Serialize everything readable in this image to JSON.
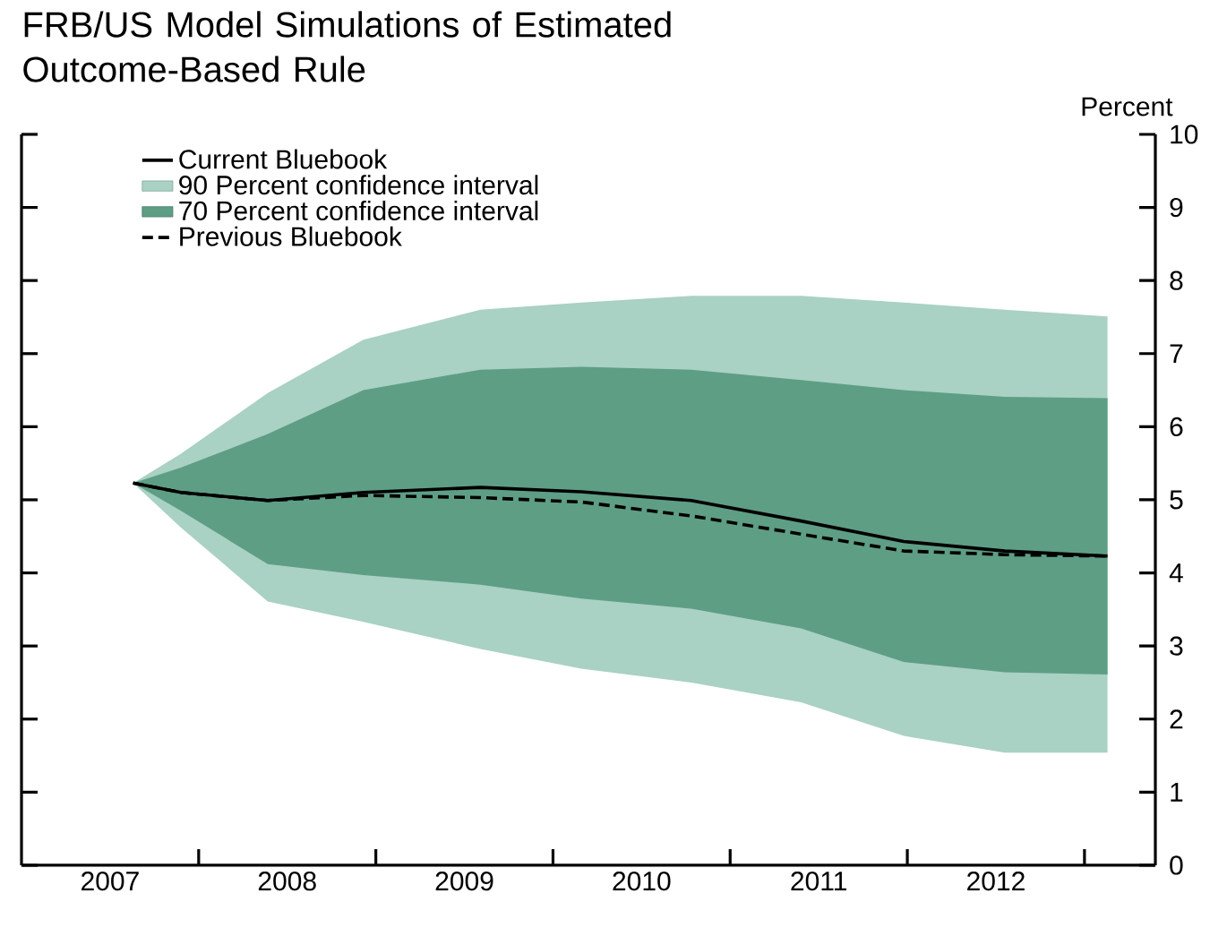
{
  "chart_data": {
    "type": "line",
    "title": "FRB/US Model Simulations of Estimated Outcome-Based Rule",
    "ylabel": "Percent",
    "legend": "top left",
    "x": [
      2007.63,
      2007.9,
      2008.39,
      2008.93,
      2009.59,
      2010.16,
      2010.78,
      2011.4,
      2011.98,
      2012.55,
      2013.13
    ],
    "xlim": [
      2007,
      2013.4
    ],
    "xticks": [
      {
        "value": 2007.5,
        "label": "2007"
      },
      {
        "value": 2008,
        "label": null
      },
      {
        "value": 2008.5,
        "label": "2008"
      },
      {
        "value": 2009,
        "label": null
      },
      {
        "value": 2009.5,
        "label": "2009"
      },
      {
        "value": 2010,
        "label": null
      },
      {
        "value": 2010.5,
        "label": "2010"
      },
      {
        "value": 2011,
        "label": null
      },
      {
        "value": 2011.5,
        "label": "2011"
      },
      {
        "value": 2012,
        "label": null
      },
      {
        "value": 2012.5,
        "label": "2012"
      },
      {
        "value": 2013,
        "label": null
      }
    ],
    "ylim": [
      0,
      10
    ],
    "yticks": [
      0,
      1,
      2,
      3,
      4,
      5,
      6,
      7,
      8,
      9,
      10
    ],
    "series": [
      {
        "name": "Current Bluebook",
        "color": "#000000",
        "line_style": "solid",
        "values": [
          5.23,
          5.1,
          4.99,
          5.1,
          5.17,
          5.11,
          4.99,
          4.71,
          4.43,
          4.3,
          4.23
        ]
      },
      {
        "name": "90 Percent confidence interval",
        "type": "area",
        "color": "#a9d1c4",
        "values": [
          null,
          null,
          null,
          null,
          null,
          null,
          null,
          null,
          null,
          null,
          null
        ],
        "upper": [
          5.23,
          5.63,
          6.46,
          7.19,
          7.6,
          7.7,
          7.79,
          7.79,
          7.7,
          7.6,
          7.51
        ],
        "lower": [
          5.23,
          4.62,
          3.61,
          3.33,
          2.96,
          2.69,
          2.5,
          2.23,
          1.77,
          1.54,
          1.54
        ]
      },
      {
        "name": "70 Percent confidence interval",
        "type": "area",
        "color": "#5e9e85",
        "values": [
          null,
          null,
          null,
          null,
          null,
          null,
          null,
          null,
          null,
          null,
          null
        ],
        "upper": [
          5.23,
          5.44,
          5.9,
          6.5,
          6.78,
          6.82,
          6.78,
          6.64,
          6.5,
          6.41,
          6.39
        ],
        "lower": [
          5.23,
          4.85,
          4.12,
          3.97,
          3.84,
          3.65,
          3.51,
          3.24,
          2.78,
          2.64,
          2.61
        ]
      },
      {
        "name": "Previous Bluebook",
        "color": "#000000",
        "line_style": "dashed",
        "values": [
          5.23,
          5.1,
          4.99,
          5.06,
          5.03,
          4.97,
          4.78,
          4.53,
          4.3,
          4.25,
          4.23
        ]
      }
    ]
  }
}
